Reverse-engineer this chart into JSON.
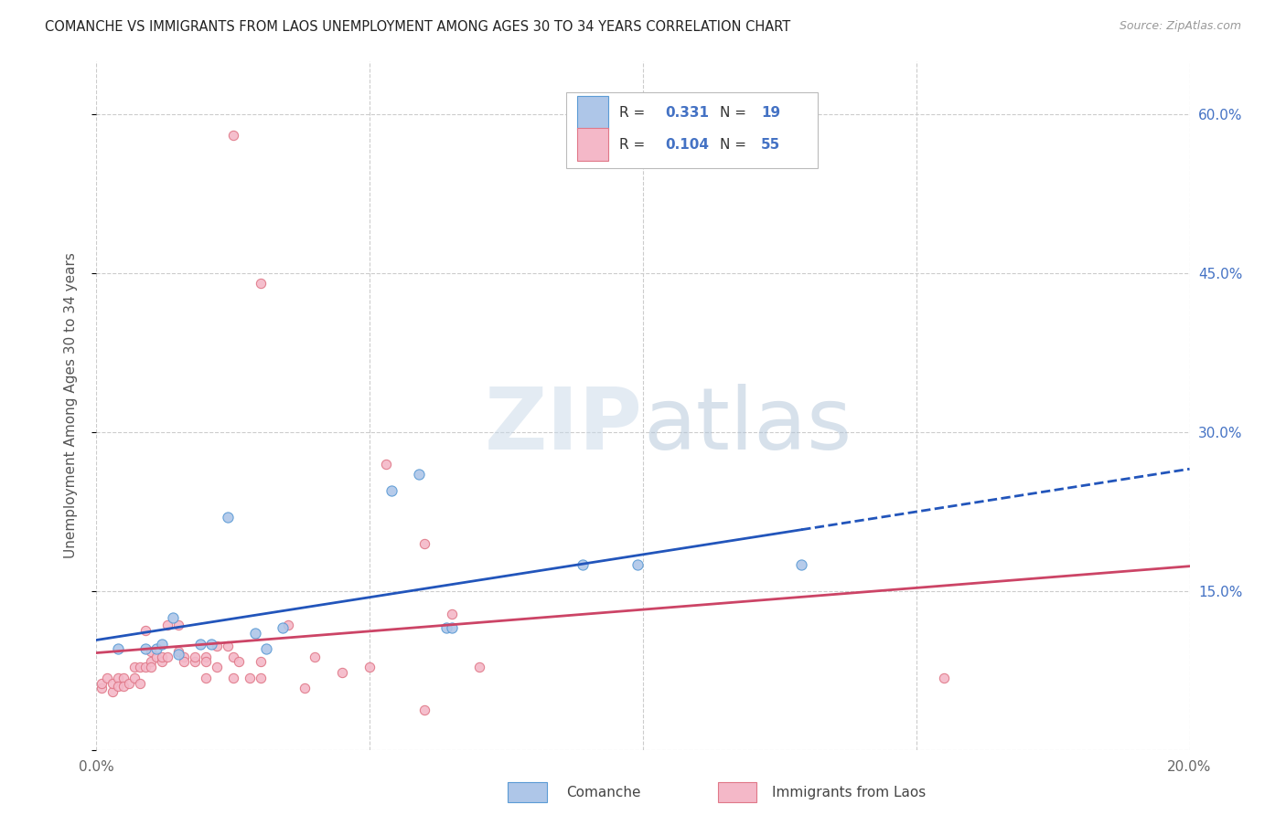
{
  "title": "COMANCHE VS IMMIGRANTS FROM LAOS UNEMPLOYMENT AMONG AGES 30 TO 34 YEARS CORRELATION CHART",
  "source": "Source: ZipAtlas.com",
  "ylabel": "Unemployment Among Ages 30 to 34 years",
  "xlim": [
    0.0,
    0.2
  ],
  "ylim": [
    0.0,
    0.65
  ],
  "xticks": [
    0.0,
    0.05,
    0.1,
    0.15,
    0.2
  ],
  "xtick_labels": [
    "0.0%",
    "",
    "",
    "",
    "20.0%"
  ],
  "ytick_vals": [
    0.0,
    0.15,
    0.3,
    0.45,
    0.6
  ],
  "ytick_labels_right": [
    "",
    "15.0%",
    "30.0%",
    "45.0%",
    "60.0%"
  ],
  "comanche_color": "#aec6e8",
  "comanche_edge": "#5b9bd5",
  "laos_color": "#f4b8c8",
  "laos_edge": "#e07888",
  "trend_blue": "#2255bb",
  "trend_pink": "#cc4466",
  "background": "#ffffff",
  "grid_color": "#cccccc",
  "comanche_points": [
    [
      0.004,
      0.095
    ],
    [
      0.009,
      0.095
    ],
    [
      0.011,
      0.095
    ],
    [
      0.012,
      0.1
    ],
    [
      0.014,
      0.125
    ],
    [
      0.015,
      0.09
    ],
    [
      0.019,
      0.1
    ],
    [
      0.021,
      0.1
    ],
    [
      0.024,
      0.22
    ],
    [
      0.029,
      0.11
    ],
    [
      0.031,
      0.095
    ],
    [
      0.034,
      0.115
    ],
    [
      0.054,
      0.245
    ],
    [
      0.059,
      0.26
    ],
    [
      0.064,
      0.115
    ],
    [
      0.065,
      0.115
    ],
    [
      0.089,
      0.175
    ],
    [
      0.099,
      0.175
    ],
    [
      0.129,
      0.175
    ]
  ],
  "laos_points": [
    [
      0.001,
      0.058
    ],
    [
      0.001,
      0.063
    ],
    [
      0.002,
      0.068
    ],
    [
      0.003,
      0.055
    ],
    [
      0.003,
      0.063
    ],
    [
      0.004,
      0.068
    ],
    [
      0.004,
      0.06
    ],
    [
      0.005,
      0.068
    ],
    [
      0.005,
      0.06
    ],
    [
      0.006,
      0.063
    ],
    [
      0.007,
      0.068
    ],
    [
      0.007,
      0.078
    ],
    [
      0.008,
      0.063
    ],
    [
      0.008,
      0.078
    ],
    [
      0.009,
      0.113
    ],
    [
      0.009,
      0.078
    ],
    [
      0.01,
      0.093
    ],
    [
      0.01,
      0.083
    ],
    [
      0.01,
      0.078
    ],
    [
      0.011,
      0.088
    ],
    [
      0.012,
      0.083
    ],
    [
      0.012,
      0.088
    ],
    [
      0.013,
      0.118
    ],
    [
      0.013,
      0.088
    ],
    [
      0.015,
      0.093
    ],
    [
      0.015,
      0.118
    ],
    [
      0.016,
      0.088
    ],
    [
      0.016,
      0.083
    ],
    [
      0.018,
      0.083
    ],
    [
      0.018,
      0.088
    ],
    [
      0.02,
      0.088
    ],
    [
      0.02,
      0.083
    ],
    [
      0.02,
      0.068
    ],
    [
      0.022,
      0.098
    ],
    [
      0.022,
      0.078
    ],
    [
      0.024,
      0.098
    ],
    [
      0.025,
      0.088
    ],
    [
      0.025,
      0.068
    ],
    [
      0.026,
      0.083
    ],
    [
      0.028,
      0.068
    ],
    [
      0.03,
      0.083
    ],
    [
      0.03,
      0.068
    ],
    [
      0.035,
      0.118
    ],
    [
      0.038,
      0.058
    ],
    [
      0.04,
      0.088
    ],
    [
      0.045,
      0.073
    ],
    [
      0.05,
      0.078
    ],
    [
      0.053,
      0.27
    ],
    [
      0.06,
      0.038
    ],
    [
      0.065,
      0.128
    ],
    [
      0.07,
      0.078
    ],
    [
      0.03,
      0.44
    ],
    [
      0.025,
      0.58
    ],
    [
      0.06,
      0.195
    ],
    [
      0.155,
      0.068
    ]
  ]
}
